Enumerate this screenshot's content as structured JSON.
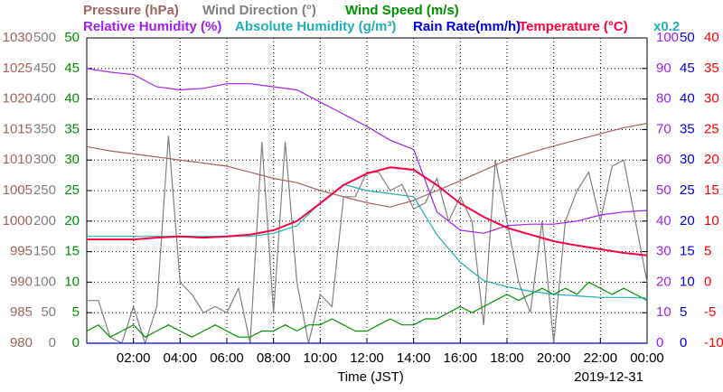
{
  "chart_data": {
    "type": "line",
    "xlabel": "Time (JST)",
    "date": "2019-12-31",
    "xlim": [
      0,
      24
    ],
    "xticks": [
      {
        "value": 2,
        "label": "02:00"
      },
      {
        "value": 4,
        "label": "04:00"
      },
      {
        "value": 6,
        "label": "06:00"
      },
      {
        "value": 8,
        "label": "08:00"
      },
      {
        "value": 10,
        "label": "10:00"
      },
      {
        "value": 12,
        "label": "12:00"
      },
      {
        "value": 14,
        "label": "14:00"
      },
      {
        "value": 16,
        "label": "16:00"
      },
      {
        "value": 18,
        "label": "18:00"
      },
      {
        "value": 20,
        "label": "20:00"
      },
      {
        "value": 22,
        "label": "22:00"
      },
      {
        "value": 24,
        "label": "00:00"
      }
    ],
    "grid": true,
    "y_axes": [
      {
        "side": "left",
        "color": "#a0645f",
        "lim": [
          980,
          1030
        ],
        "ticks": [
          980,
          985,
          990,
          995,
          1000,
          1005,
          1010,
          1015,
          1020,
          1025,
          1030
        ]
      },
      {
        "side": "left",
        "color": "#808080",
        "lim": [
          0,
          500
        ],
        "ticks": [
          0,
          50,
          100,
          150,
          200,
          250,
          300,
          350,
          400,
          450,
          500
        ]
      },
      {
        "side": "left",
        "color": "#009000",
        "lim": [
          0,
          50
        ],
        "ticks": [
          0,
          5,
          10,
          15,
          20,
          25,
          30,
          35,
          40,
          45,
          50
        ]
      },
      {
        "side": "right",
        "color": "#a020f0",
        "lim": [
          0,
          100
        ],
        "ticks": [
          0,
          10,
          20,
          30,
          40,
          50,
          60,
          70,
          80,
          90,
          100
        ]
      },
      {
        "side": "right",
        "color": "#0000e0",
        "lim": [
          0,
          50
        ],
        "ticks": [
          0,
          5,
          10,
          15,
          20,
          25,
          30,
          35,
          40,
          45,
          50
        ]
      },
      {
        "side": "right",
        "color": "#ff0000",
        "lim": [
          -10,
          40
        ],
        "ticks": [
          -10,
          -5,
          0,
          5,
          10,
          15,
          20,
          25,
          30,
          35,
          40
        ]
      }
    ],
    "series": [
      {
        "name": "Pressure (hPa)",
        "color": "#a0645f",
        "axis": 0,
        "x": [
          0,
          1,
          2,
          3,
          4,
          5,
          6,
          7,
          8,
          9,
          10,
          11,
          12,
          13,
          14,
          15,
          16,
          17,
          18,
          19,
          20,
          21,
          22,
          23,
          24
        ],
        "values": [
          1012.2,
          1011.5,
          1011,
          1010.5,
          1010,
          1009.5,
          1009,
          1008,
          1007,
          1006.3,
          1005,
          1004,
          1003,
          1002.3,
          1003.4,
          1005,
          1006.6,
          1008.3,
          1010,
          1011.2,
          1012.3,
          1013.3,
          1014.3,
          1015.3,
          1016
        ]
      },
      {
        "name": "Wind Direction (°)",
        "color": "#808080",
        "axis": 1,
        "x": [
          0,
          0.5,
          1,
          1.5,
          2,
          2.5,
          3,
          3.5,
          4,
          4.5,
          5,
          5.5,
          6,
          6.5,
          7,
          7.5,
          8,
          8.5,
          9,
          9.5,
          10,
          10.5,
          11,
          11.5,
          12,
          12.5,
          13,
          13.5,
          14,
          14.5,
          15,
          15.5,
          16,
          16.5,
          17,
          17.5,
          18,
          18.5,
          19,
          19.5,
          20,
          20.5,
          21,
          21.5,
          22,
          22.5,
          23,
          23.5,
          24
        ],
        "values": [
          70,
          70,
          10,
          0,
          60,
          0,
          60,
          340,
          100,
          80,
          50,
          60,
          50,
          90,
          0,
          330,
          50,
          330,
          100,
          0,
          80,
          60,
          240,
          240,
          280,
          280,
          250,
          260,
          220,
          230,
          270,
          200,
          240,
          200,
          30,
          300,
          200,
          100,
          50,
          200,
          0,
          200,
          250,
          280,
          200,
          290,
          300,
          200,
          100
        ]
      },
      {
        "name": "Wind Speed (m/s)",
        "color": "#009000",
        "axis": 2,
        "x": [
          0,
          0.5,
          1,
          1.5,
          2,
          2.5,
          3,
          3.5,
          4,
          4.5,
          5,
          5.5,
          6,
          6.5,
          7,
          7.5,
          8,
          8.5,
          9,
          9.5,
          10,
          10.5,
          11,
          11.5,
          12,
          12.5,
          13,
          13.5,
          14,
          14.5,
          15,
          15.5,
          16,
          16.5,
          17,
          17.5,
          18,
          18.5,
          19,
          19.5,
          20,
          20.5,
          21,
          21.5,
          22,
          22.5,
          23,
          23.5,
          24
        ],
        "values": [
          2,
          3,
          1,
          2,
          3,
          1,
          2,
          3,
          2,
          1,
          2,
          3,
          2,
          1,
          1,
          2,
          2,
          3,
          2,
          3,
          3,
          4,
          3,
          2,
          2,
          3,
          4,
          3,
          3,
          4,
          4,
          5,
          6,
          5,
          6,
          7,
          8,
          7,
          8,
          9,
          8,
          9,
          8,
          10,
          9,
          8,
          9,
          8,
          7
        ]
      },
      {
        "name": "Relative Humidity (%)",
        "color": "#a020f0",
        "axis": 3,
        "x": [
          0,
          1,
          2,
          3,
          4,
          5,
          6,
          7,
          8,
          9,
          10,
          11,
          12,
          13,
          14,
          15,
          16,
          17,
          18,
          19,
          20,
          21,
          22,
          23,
          24
        ],
        "values": [
          90,
          88.8,
          88,
          84,
          83,
          83.5,
          85,
          85,
          84,
          83,
          79,
          75,
          71,
          66.5,
          63.5,
          43,
          37,
          36,
          38.5,
          39,
          39,
          40,
          42,
          43,
          43.5
        ]
      },
      {
        "name": "Absolute Humidity (g/m³)",
        "color": "#20b0b0",
        "axis": 3,
        "factor": 0.2,
        "factor_label": "x0.2",
        "x": [
          0,
          1,
          2,
          3,
          4,
          5,
          6,
          7,
          8,
          9,
          10,
          11,
          12,
          13,
          14,
          15,
          16,
          17,
          18,
          19,
          20,
          21,
          22,
          23,
          24
        ],
        "values": [
          7,
          7,
          7,
          7,
          7,
          7,
          7,
          7,
          7.2,
          7.7,
          9.2,
          10.4,
          10,
          9.8,
          9.6,
          7.1,
          5.3,
          4.1,
          3.7,
          3.4,
          3.2,
          3.1,
          3,
          3,
          2.96
        ]
      },
      {
        "name": "Rain Rate(mm/h)",
        "color": "#0000e0",
        "axis": 4,
        "x": [
          0,
          1,
          2,
          3,
          4,
          5,
          6,
          7,
          8,
          9,
          10,
          11,
          12,
          13,
          14,
          15,
          16,
          17,
          18,
          19,
          20,
          21,
          22,
          23,
          24
        ],
        "values": [
          0,
          0,
          0,
          0,
          0,
          0,
          0,
          0,
          0,
          0,
          0,
          0,
          0,
          0,
          0,
          0,
          0,
          0,
          0,
          0,
          0,
          0,
          0,
          0,
          0
        ]
      },
      {
        "name": "Temperature (°C)",
        "color": "#ff0040",
        "axis": 5,
        "x": [
          0,
          1,
          2,
          3,
          4,
          5,
          6,
          7,
          8,
          9,
          10,
          11,
          12,
          13,
          14,
          15,
          16,
          17,
          18,
          19,
          20,
          21,
          22,
          23,
          24
        ],
        "values": [
          7,
          7,
          7,
          7.3,
          7.5,
          7.3,
          7.5,
          7.8,
          8.5,
          10,
          12.9,
          15.9,
          17.8,
          18.8,
          18.4,
          15.9,
          12.9,
          10.7,
          8.9,
          7.8,
          6.7,
          6,
          5.4,
          4.8,
          4.4
        ]
      }
    ]
  }
}
